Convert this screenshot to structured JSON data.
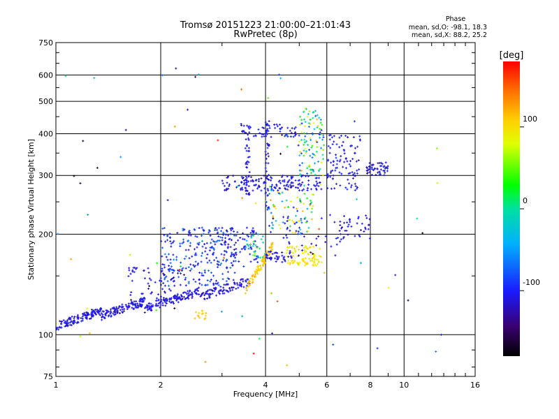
{
  "chart_data": {
    "type": "scatter",
    "title": "Tromsø 20151223 21:00:00–21:01:43",
    "subtitle": "RwPretec (8p)",
    "xlabel": "Frequency [MHz]",
    "ylabel": "Stationary phase Virtual Height [km]",
    "x_scale": "log",
    "y_scale": "log",
    "xlim": [
      1,
      16
    ],
    "ylim": [
      75,
      750
    ],
    "x_ticks": [
      1,
      2,
      4,
      6,
      8,
      10,
      16
    ],
    "x_tick_labels": [
      "1",
      "2",
      "4",
      "6",
      "8",
      "10",
      "16"
    ],
    "x_grid": [
      2,
      4,
      6,
      8,
      10
    ],
    "y_ticks": [
      75,
      100,
      200,
      300,
      400,
      500,
      600,
      750
    ],
    "y_tick_labels": [
      "75",
      "100",
      "200",
      "300",
      "400",
      "500",
      "600",
      "750"
    ],
    "y_grid": [
      100,
      200,
      300,
      400,
      500,
      600
    ],
    "grid": true,
    "phase_info": {
      "heading": "Phase",
      "line_o": "mean, sd,O: -98.1, 18.3",
      "line_x": "mean, sd,X:  88.2, 25.2"
    },
    "colorbar": {
      "label": "[deg]",
      "range": [
        -180,
        180
      ],
      "ticks": [
        100,
        0,
        -100
      ],
      "tick_labels": [
        "100",
        "0",
        "-100"
      ]
    },
    "clusters": [
      {
        "f": [
          1.0,
          1.35
        ],
        "h": [
          106,
          118
        ],
        "phase": [
          -120,
          -95
        ],
        "n": 130,
        "trend": "rising"
      },
      {
        "f": [
          1.35,
          1.8
        ],
        "h": [
          114,
          126
        ],
        "phase": [
          -120,
          -95
        ],
        "n": 120,
        "trend": "rising"
      },
      {
        "f": [
          1.8,
          2.6
        ],
        "h": [
          120,
          135
        ],
        "phase": [
          -120,
          -95
        ],
        "n": 120,
        "trend": "rising"
      },
      {
        "f": [
          2.6,
          3.6
        ],
        "h": [
          130,
          145
        ],
        "phase": [
          -120,
          -100
        ],
        "n": 90,
        "trend": "rising"
      },
      {
        "f": [
          2.0,
          3.3
        ],
        "h": [
          140,
          210
        ],
        "phase": [
          -125,
          -60
        ],
        "n": 260,
        "trend": "none"
      },
      {
        "f": [
          1.6,
          2.2
        ],
        "h": [
          125,
          160
        ],
        "phase": [
          -120,
          -95
        ],
        "n": 60,
        "trend": "none"
      },
      {
        "f": [
          3.0,
          3.8
        ],
        "h": [
          160,
          210
        ],
        "phase": [
          -115,
          -85
        ],
        "n": 70,
        "trend": "none"
      },
      {
        "f": [
          3.5,
          4.2
        ],
        "h": [
          135,
          185
        ],
        "phase": [
          95,
          125
        ],
        "n": 90,
        "trend": "rising"
      },
      {
        "f": [
          3.5,
          4.0
        ],
        "h": [
          170,
          200
        ],
        "phase": [
          -80,
          60
        ],
        "n": 30,
        "trend": "none"
      },
      {
        "f": [
          4.6,
          5.8
        ],
        "h": [
          160,
          185
        ],
        "phase": [
          80,
          110
        ],
        "n": 90,
        "trend": "none"
      },
      {
        "f": [
          4.0,
          4.8
        ],
        "h": [
          165,
          178
        ],
        "phase": [
          -120,
          -100
        ],
        "n": 40,
        "trend": "none"
      },
      {
        "f": [
          4.0,
          5.5
        ],
        "h": [
          200,
          280
        ],
        "phase": [
          -120,
          130
        ],
        "n": 90,
        "trend": "none"
      },
      {
        "f": [
          3.0,
          5.8
        ],
        "h": [
          270,
          300
        ],
        "phase": [
          -120,
          -95
        ],
        "n": 150,
        "trend": "none"
      },
      {
        "f": [
          3.5,
          3.6
        ],
        "h": [
          260,
          420
        ],
        "phase": [
          -120,
          -95
        ],
        "n": 40,
        "trend": "none"
      },
      {
        "f": [
          4.0,
          4.1
        ],
        "h": [
          230,
          440
        ],
        "phase": [
          -120,
          -90
        ],
        "n": 40,
        "trend": "none"
      },
      {
        "f": [
          5.0,
          5.9
        ],
        "h": [
          300,
          480
        ],
        "phase": [
          -110,
          120
        ],
        "n": 110,
        "trend": "none"
      },
      {
        "f": [
          3.4,
          5.0
        ],
        "h": [
          390,
          430
        ],
        "phase": [
          -120,
          -90
        ],
        "n": 60,
        "trend": "none"
      },
      {
        "f": [
          6.0,
          7.5
        ],
        "h": [
          270,
          400
        ],
        "phase": [
          -120,
          -90
        ],
        "n": 100,
        "trend": "none"
      },
      {
        "f": [
          7.8,
          9.0
        ],
        "h": [
          300,
          330
        ],
        "phase": [
          -130,
          -90
        ],
        "n": 50,
        "trend": "none"
      },
      {
        "f": [
          6.5,
          8.0
        ],
        "h": [
          190,
          230
        ],
        "phase": [
          -125,
          -95
        ],
        "n": 40,
        "trend": "none"
      },
      {
        "f": [
          2.5,
          2.7
        ],
        "h": [
          110,
          118
        ],
        "phase": [
          105,
          120
        ],
        "n": 14,
        "trend": "none"
      },
      {
        "f": [
          4.5,
          6.5
        ],
        "h": [
          170,
          230
        ],
        "phase": [
          -130,
          -90
        ],
        "n": 35,
        "trend": "none"
      },
      {
        "f": [
          1.0,
          13.0
        ],
        "h": [
          80,
          650
        ],
        "phase": [
          -180,
          180
        ],
        "n": 70,
        "trend": "none"
      }
    ]
  }
}
